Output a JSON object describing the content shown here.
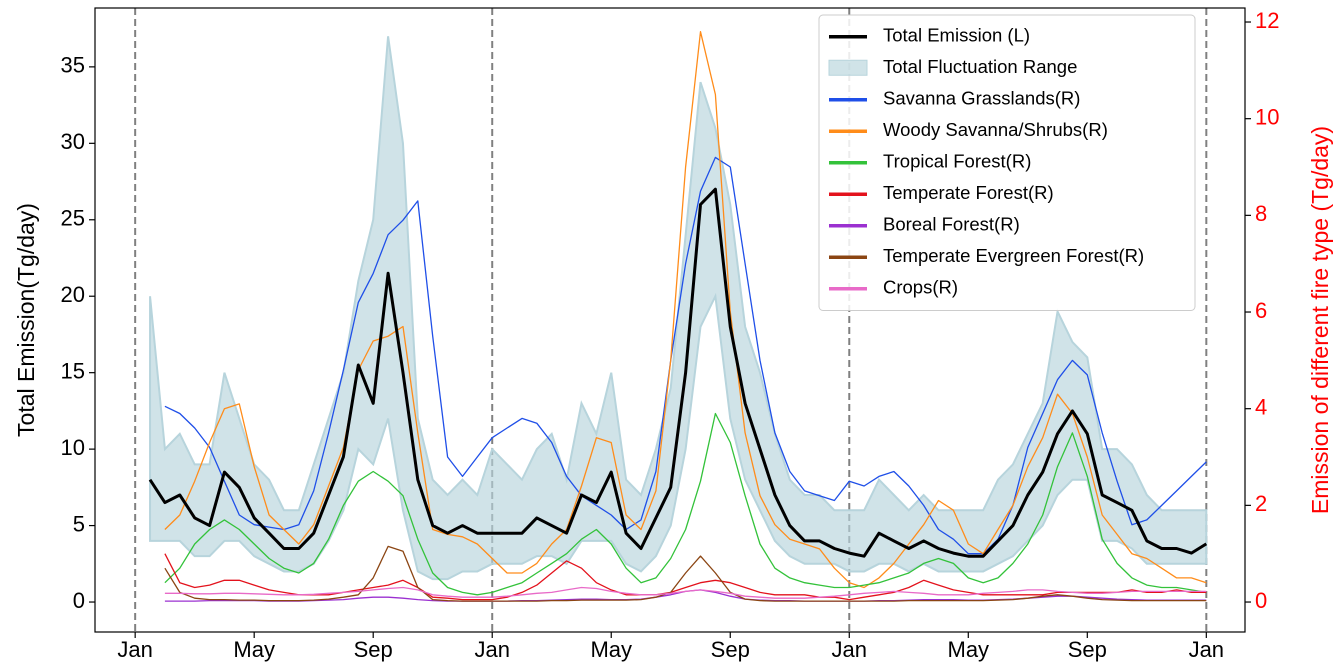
{
  "chart_data": {
    "type": "line",
    "ylabel": "Total Emission(Tg/day)",
    "y2label": "Emission of different fire type (Tg/day)",
    "y2color": "#ff0000",
    "legend": "upper right",
    "x": [
      0.5,
      1,
      1.5,
      2,
      2.5,
      3,
      3.5,
      4,
      4.5,
      5,
      5.5,
      6,
      6.5,
      7,
      7.5,
      8,
      8.5,
      9,
      9.5,
      10,
      10.5,
      11,
      11.5,
      12,
      12.5,
      13,
      13.5,
      14,
      14.5,
      15,
      15.5,
      16,
      16.5,
      17,
      17.5,
      18,
      18.5,
      19,
      19.5,
      20,
      20.5,
      21,
      21.5,
      22,
      22.5,
      23,
      23.5,
      24,
      24.5,
      25,
      25.5,
      26,
      26.5,
      27,
      27.5,
      28,
      28.5,
      29,
      29.5,
      30,
      30.5,
      31,
      31.5,
      32,
      32.5,
      33,
      33.5,
      34,
      34.5,
      35,
      35.5,
      36
    ],
    "xlim": [
      -1.35,
      37.3
    ],
    "xticks": [
      {
        "value": 0,
        "label": "Jan"
      },
      {
        "value": 4,
        "label": "May"
      },
      {
        "value": 8,
        "label": "Sep"
      },
      {
        "value": 12,
        "label": "Jan"
      },
      {
        "value": 16,
        "label": "May"
      },
      {
        "value": 20,
        "label": "Sep"
      },
      {
        "value": 24,
        "label": "Jan"
      },
      {
        "value": 28,
        "label": "May"
      },
      {
        "value": 32,
        "label": "Sep"
      },
      {
        "value": 36,
        "label": "Jan"
      }
    ],
    "vlines": [
      0,
      12,
      24,
      36
    ],
    "ylim": [
      -1.96,
      38.85
    ],
    "yticks": [
      0,
      5,
      10,
      15,
      20,
      25,
      30,
      35
    ],
    "y2lim": [
      -0.62,
      12.29
    ],
    "y2ticks": [
      0,
      2,
      4,
      6,
      8,
      10,
      12
    ],
    "range": {
      "name": "Total Fluctuation Range",
      "color": "#b7d4dc",
      "high": [
        20,
        10,
        11,
        9,
        9,
        15,
        12,
        9,
        8,
        6,
        6,
        9,
        12,
        15,
        21,
        25,
        37,
        30,
        12,
        8,
        7,
        8,
        7,
        10,
        9,
        8,
        10,
        11,
        8,
        13,
        11,
        15,
        8,
        7,
        10,
        14,
        24,
        34,
        31,
        26,
        18,
        15,
        11,
        8,
        7,
        7,
        6,
        6,
        6,
        8,
        7,
        6,
        7,
        6,
        6,
        6,
        6,
        8,
        9,
        11,
        13,
        19,
        17,
        16,
        10,
        10,
        9,
        7,
        6,
        6,
        6,
        6
      ],
      "low": [
        4,
        4,
        4,
        3,
        3,
        4,
        4,
        3,
        2.5,
        2,
        2,
        2.5,
        4,
        6,
        10,
        9,
        12,
        6,
        2,
        1.5,
        1.5,
        2,
        2,
        2.5,
        2.5,
        2.5,
        3,
        3,
        2.5,
        4,
        4,
        4,
        2.5,
        2,
        3,
        5,
        10,
        18,
        20,
        12,
        8,
        6,
        4,
        3,
        2.5,
        2.5,
        2.5,
        2,
        2,
        2.5,
        2.5,
        2,
        2.5,
        2,
        2,
        2,
        2,
        2.5,
        3,
        4,
        5,
        7,
        8,
        8,
        4,
        4,
        3.5,
        2.5,
        2.5,
        2.5,
        2.5,
        2.5
      ]
    },
    "series": [
      {
        "name": "Total Emission (L)",
        "color": "#000000",
        "axis": "y",
        "values": [
          8,
          6.5,
          7,
          5.5,
          5,
          8.5,
          7.5,
          5.5,
          4.5,
          3.5,
          3.5,
          4.5,
          7,
          9.5,
          15.5,
          13,
          21.5,
          15,
          8,
          5,
          4.5,
          5,
          4.5,
          4.5,
          4.5,
          4.5,
          5.5,
          5,
          4.5,
          7,
          6.5,
          8.5,
          4.5,
          3.5,
          5.5,
          7.5,
          15,
          26,
          27,
          18,
          13,
          10,
          7,
          5,
          4,
          4,
          3.5,
          3.2,
          3,
          4.5,
          4,
          3.5,
          4,
          3.5,
          3.2,
          3,
          3,
          4,
          5,
          7,
          8.5,
          11,
          12.5,
          11,
          7,
          6.5,
          6,
          4,
          3.5,
          3.5,
          3.2,
          3.8
        ]
      },
      {
        "name": "Savanna Grasslands(R)",
        "color": "#1f4fe8",
        "axis": "y2",
        "values": [
          null,
          4.05,
          3.9,
          3.6,
          3.2,
          2.5,
          1.8,
          1.6,
          1.55,
          1.5,
          1.6,
          2.3,
          3.5,
          4.8,
          6.2,
          6.8,
          7.6,
          7.9,
          8.3,
          5.5,
          3,
          2.6,
          3.0,
          3.4,
          3.6,
          3.8,
          3.7,
          3.3,
          2.6,
          2.2,
          2.0,
          1.8,
          1.5,
          1.7,
          2.7,
          5,
          7,
          8.5,
          9.2,
          9,
          7,
          5,
          3.5,
          2.7,
          2.3,
          2.2,
          2.1,
          2.5,
          2.4,
          2.6,
          2.7,
          2.4,
          2,
          1.5,
          1.3,
          1.0,
          1.0,
          1.3,
          2.0,
          3.2,
          3.9,
          4.6,
          5.0,
          4.7,
          3.5,
          2.5,
          1.6,
          1.7,
          2.0,
          2.3,
          2.6,
          2.9
        ]
      },
      {
        "name": "Woody Savanna/Shrubs(R)",
        "color": "#ff8c1a",
        "axis": "y2",
        "values": [
          null,
          1.5,
          1.8,
          2.5,
          3.3,
          4,
          4.1,
          2.8,
          1.8,
          1.5,
          1.2,
          1.6,
          2.4,
          3.2,
          4.8,
          5.4,
          5.5,
          5.7,
          3.5,
          1.5,
          1.4,
          1.35,
          1.2,
          0.9,
          0.6,
          0.6,
          0.8,
          1.2,
          1.5,
          2.4,
          3.4,
          3.3,
          1.8,
          1.5,
          2.3,
          5,
          9,
          11.8,
          10.5,
          6,
          3.5,
          2.2,
          1.6,
          1.3,
          1.2,
          1.1,
          0.7,
          0.4,
          0.3,
          0.5,
          0.8,
          1.2,
          1.6,
          2.1,
          1.9,
          1.2,
          1.0,
          1.5,
          2.0,
          2.8,
          3.4,
          4.3,
          3.9,
          3.0,
          1.8,
          1.4,
          1.0,
          0.9,
          0.7,
          0.5,
          0.5,
          0.4
        ]
      },
      {
        "name": "Tropical Forest(R)",
        "color": "#33c23a",
        "axis": "y2",
        "values": [
          null,
          0.4,
          0.7,
          1.2,
          1.5,
          1.7,
          1.5,
          1.2,
          0.9,
          0.7,
          0.6,
          0.8,
          1.3,
          2.0,
          2.5,
          2.7,
          2.5,
          2.2,
          1.3,
          0.6,
          0.3,
          0.2,
          0.15,
          0.2,
          0.3,
          0.4,
          0.6,
          0.8,
          1.0,
          1.3,
          1.5,
          1.2,
          0.7,
          0.4,
          0.5,
          0.9,
          1.5,
          2.5,
          3.9,
          3.3,
          2.2,
          1.2,
          0.7,
          0.5,
          0.4,
          0.35,
          0.3,
          0.3,
          0.35,
          0.4,
          0.5,
          0.6,
          0.8,
          0.9,
          0.8,
          0.5,
          0.4,
          0.5,
          0.8,
          1.2,
          1.8,
          2.8,
          3.5,
          2.6,
          1.3,
          0.8,
          0.5,
          0.35,
          0.3,
          0.3,
          0.25,
          0.2
        ]
      },
      {
        "name": "Temperate Forest(R)",
        "color": "#e3121c",
        "axis": "y2",
        "values": [
          null,
          1.0,
          0.4,
          0.3,
          0.35,
          0.45,
          0.45,
          0.35,
          0.25,
          0.2,
          0.15,
          0.15,
          0.15,
          0.2,
          0.25,
          0.3,
          0.35,
          0.45,
          0.3,
          0.1,
          0.08,
          0.05,
          0.05,
          0.05,
          0.1,
          0.2,
          0.35,
          0.6,
          0.85,
          0.7,
          0.4,
          0.25,
          0.15,
          0.15,
          0.15,
          0.2,
          0.3,
          0.4,
          0.45,
          0.4,
          0.3,
          0.2,
          0.15,
          0.15,
          0.15,
          0.1,
          0.1,
          0.05,
          0.1,
          0.15,
          0.2,
          0.3,
          0.45,
          0.35,
          0.25,
          0.2,
          0.15,
          0.15,
          0.15,
          0.15,
          0.15,
          0.2,
          0.2,
          0.2,
          0.2,
          0.2,
          0.25,
          0.2,
          0.2,
          0.25,
          0.2,
          0.2
        ]
      },
      {
        "name": "Boreal Forest(R)",
        "color": "#9b30d0",
        "axis": "y2",
        "values": [
          null,
          0.02,
          0.02,
          0.02,
          0.03,
          0.03,
          0.03,
          0.03,
          0.02,
          0.02,
          0.02,
          0.03,
          0.04,
          0.05,
          0.08,
          0.1,
          0.1,
          0.08,
          0.05,
          0.03,
          0.02,
          0.02,
          0.02,
          0.02,
          0.02,
          0.03,
          0.03,
          0.04,
          0.05,
          0.06,
          0.06,
          0.05,
          0.05,
          0.06,
          0.1,
          0.15,
          0.22,
          0.25,
          0.2,
          0.12,
          0.06,
          0.04,
          0.03,
          0.03,
          0.02,
          0.02,
          0.02,
          0.02,
          0.02,
          0.03,
          0.03,
          0.04,
          0.05,
          0.05,
          0.05,
          0.04,
          0.04,
          0.05,
          0.06,
          0.08,
          0.1,
          0.12,
          0.12,
          0.1,
          0.08,
          0.06,
          0.05,
          0.04,
          0.04,
          0.04,
          0.04,
          0.04
        ]
      },
      {
        "name": "Temperate Evergreen Forest(R)",
        "color": "#8b4513",
        "axis": "y2",
        "values": [
          null,
          0.7,
          0.2,
          0.08,
          0.05,
          0.05,
          0.04,
          0.04,
          0.03,
          0.03,
          0.03,
          0.04,
          0.06,
          0.1,
          0.15,
          0.5,
          1.15,
          1.05,
          0.3,
          0.05,
          0.03,
          0.02,
          0.02,
          0.02,
          0.02,
          0.02,
          0.02,
          0.03,
          0.03,
          0.04,
          0.04,
          0.04,
          0.04,
          0.05,
          0.1,
          0.2,
          0.6,
          0.95,
          0.6,
          0.2,
          0.06,
          0.03,
          0.02,
          0.02,
          0.02,
          0.02,
          0.02,
          0.02,
          0.02,
          0.02,
          0.02,
          0.03,
          0.03,
          0.03,
          0.03,
          0.03,
          0.03,
          0.04,
          0.05,
          0.08,
          0.12,
          0.15,
          0.12,
          0.08,
          0.05,
          0.04,
          0.03,
          0.03,
          0.03,
          0.03,
          0.03,
          0.03
        ]
      },
      {
        "name": "Crops(R)",
        "color": "#e86ac8",
        "axis": "y2",
        "values": [
          null,
          0.18,
          0.18,
          0.17,
          0.17,
          0.18,
          0.18,
          0.17,
          0.16,
          0.15,
          0.15,
          0.16,
          0.18,
          0.2,
          0.22,
          0.25,
          0.28,
          0.3,
          0.25,
          0.15,
          0.12,
          0.1,
          0.1,
          0.1,
          0.12,
          0.15,
          0.18,
          0.2,
          0.25,
          0.3,
          0.28,
          0.22,
          0.18,
          0.15,
          0.15,
          0.18,
          0.22,
          0.25,
          0.22,
          0.18,
          0.12,
          0.1,
          0.08,
          0.08,
          0.08,
          0.1,
          0.12,
          0.15,
          0.18,
          0.2,
          0.22,
          0.2,
          0.18,
          0.15,
          0.15,
          0.15,
          0.18,
          0.2,
          0.22,
          0.25,
          0.25,
          0.22,
          0.2,
          0.18,
          0.18,
          0.2,
          0.22,
          0.22,
          0.22,
          0.22,
          0.22,
          0.22
        ]
      }
    ]
  }
}
